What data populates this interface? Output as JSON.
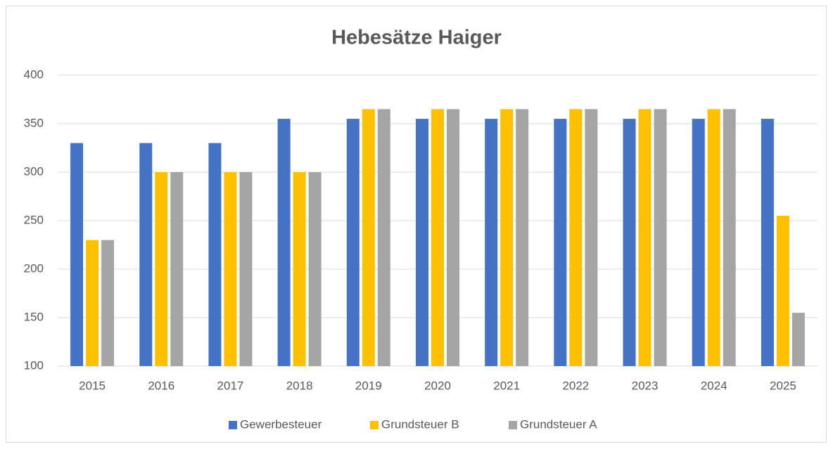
{
  "chart_data": {
    "type": "bar",
    "title": "Hebesätze Haiger",
    "categories": [
      "2015",
      "2016",
      "2017",
      "2018",
      "2019",
      "2020",
      "2021",
      "2022",
      "2023",
      "2024",
      "2025"
    ],
    "series": [
      {
        "name": "Gewerbesteuer",
        "color": "#4472c4",
        "values": [
          330,
          330,
          330,
          355,
          355,
          355,
          355,
          355,
          355,
          355,
          355
        ]
      },
      {
        "name": "Grundsteuer B",
        "color": "#ffc000",
        "values": [
          230,
          300,
          300,
          300,
          365,
          365,
          365,
          365,
          365,
          365,
          255
        ]
      },
      {
        "name": "Grundsteuer A",
        "color": "#a5a5a5",
        "values": [
          230,
          300,
          300,
          300,
          365,
          365,
          365,
          365,
          365,
          365,
          155
        ]
      }
    ],
    "ylim": [
      100,
      400
    ],
    "yticks": [
      100,
      150,
      200,
      250,
      300,
      350,
      400
    ],
    "grid": true,
    "legend": "bottom"
  }
}
